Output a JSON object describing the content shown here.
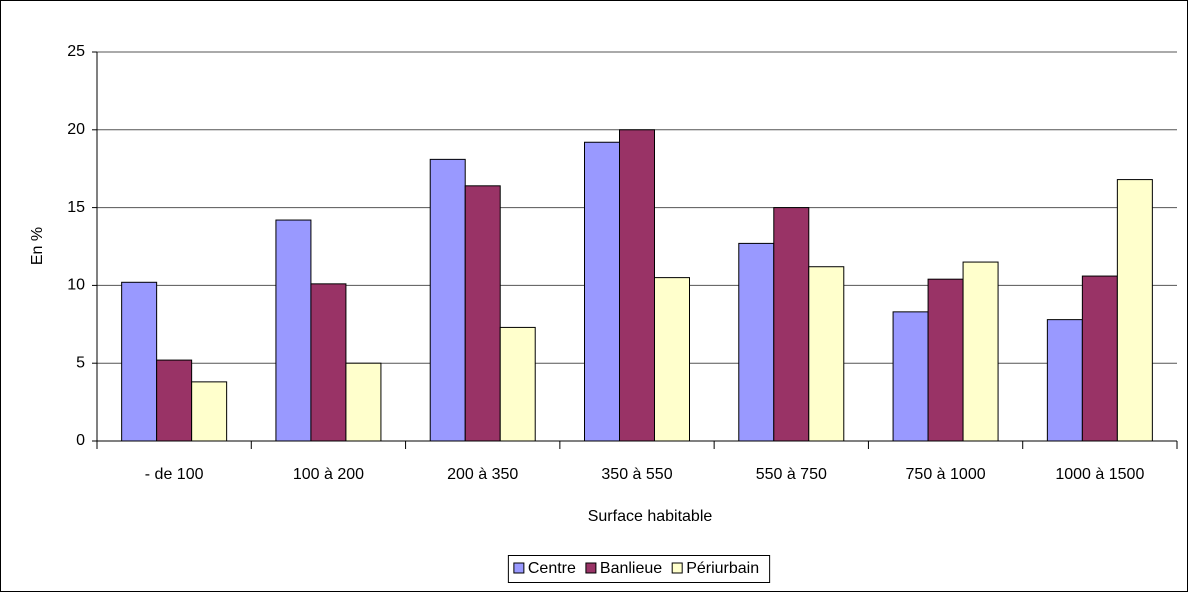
{
  "chart_data": {
    "type": "bar",
    "x_label": "Surface habitable",
    "y_label": "En %",
    "categories": [
      "- de 100",
      "100 à 200",
      "200 à 350",
      "350 à 550",
      "550 à 750",
      "750 à 1000",
      "1000 à 1500"
    ],
    "series": [
      {
        "name": "Centre",
        "color": "#9999ff",
        "values": [
          10.2,
          14.2,
          18.1,
          19.2,
          12.7,
          8.3,
          7.8
        ]
      },
      {
        "name": "Banlieue",
        "color": "#993366",
        "values": [
          5.2,
          10.1,
          16.4,
          20.0,
          15.0,
          10.4,
          10.6
        ]
      },
      {
        "name": "Périurbain",
        "color": "#ffffcc",
        "values": [
          3.8,
          5.0,
          7.3,
          10.5,
          11.2,
          11.5,
          16.8
        ]
      }
    ],
    "ylim": [
      0,
      25
    ],
    "yticks": [
      0,
      5,
      10,
      15,
      20,
      25
    ],
    "grid": true,
    "legend": "bottom"
  }
}
